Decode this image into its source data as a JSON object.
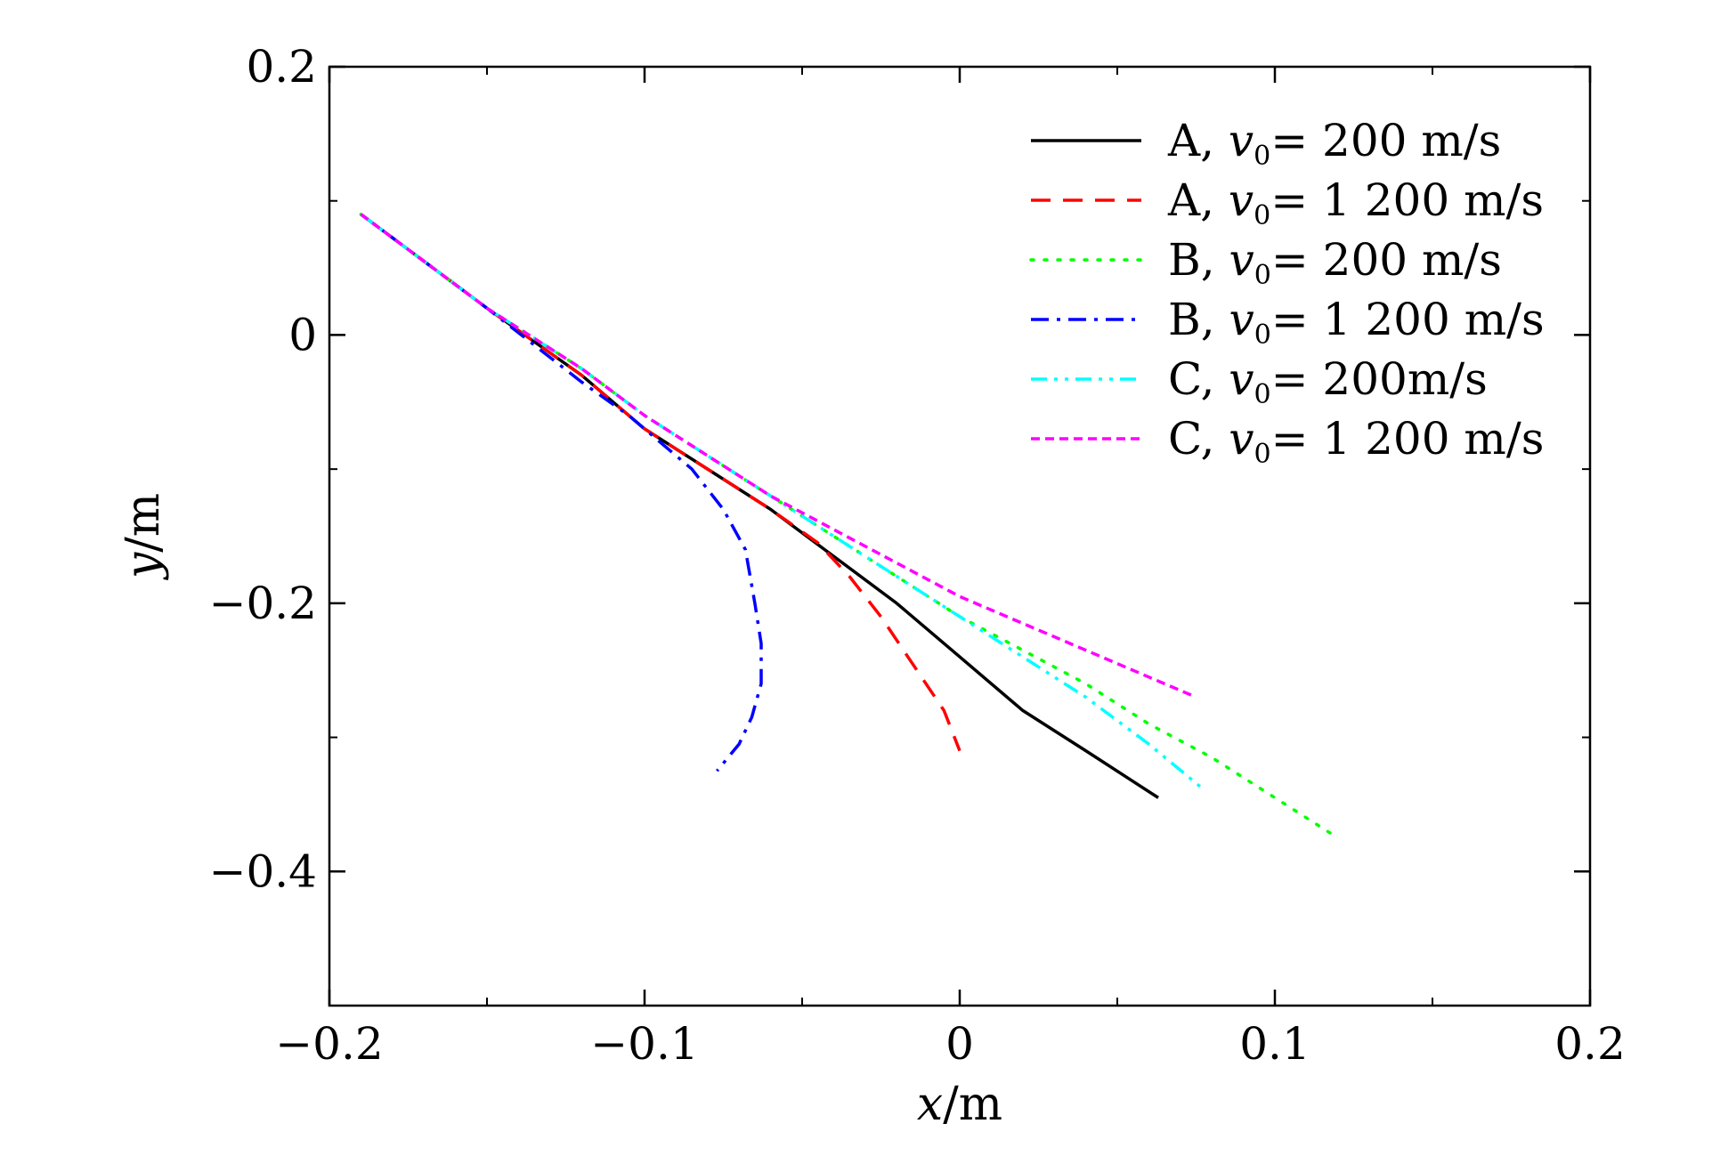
{
  "chart_data": {
    "type": "line",
    "xlabel": {
      "var": "x",
      "unit": "/m"
    },
    "ylabel": {
      "var": "y",
      "unit": "/m"
    },
    "xlim": [
      -0.2,
      0.2
    ],
    "ylim": [
      -0.5,
      0.2
    ],
    "xticks": [
      -0.2,
      -0.1,
      0,
      0.1,
      0.2
    ],
    "xtick_labels": [
      "−0.2",
      "−0.1",
      "0",
      "0.1",
      "0.2"
    ],
    "yticks": [
      0.2,
      0,
      -0.2,
      -0.4
    ],
    "ytick_labels": [
      "0.2",
      "0",
      "−0.2",
      "−0.4"
    ],
    "x_minor_ticks": [
      -0.15,
      -0.05,
      0.05,
      0.15
    ],
    "y_minor_ticks": [
      0.1,
      -0.1,
      -0.3
    ],
    "grid": false,
    "legend_position": "top-right",
    "series": [
      {
        "name": "A, v0= 200 m/s",
        "legend": {
          "prefix": "A, ",
          "var": "v",
          "sub": "0",
          "suffix": "= 200 m/s"
        },
        "color": "#000000",
        "dash": "solid",
        "x": [
          -0.19,
          -0.15,
          -0.12,
          -0.1,
          -0.08,
          -0.06,
          -0.04,
          -0.02,
          0,
          0.02,
          0.04,
          0.063
        ],
        "y": [
          0.09,
          0.02,
          -0.03,
          -0.07,
          -0.1,
          -0.13,
          -0.165,
          -0.2,
          -0.24,
          -0.28,
          -0.31,
          -0.345
        ]
      },
      {
        "name": "A, v0= 1 200 m/s",
        "legend": {
          "prefix": "A, ",
          "var": "v",
          "sub": "0",
          "suffix": "= 1 200 m/s"
        },
        "color": "#ff0000",
        "dash": "long-dash",
        "x": [
          -0.19,
          -0.15,
          -0.12,
          -0.1,
          -0.08,
          -0.06,
          -0.045,
          -0.035,
          -0.025,
          -0.015,
          -0.005,
          0
        ],
        "y": [
          0.09,
          0.02,
          -0.03,
          -0.07,
          -0.1,
          -0.13,
          -0.155,
          -0.18,
          -0.21,
          -0.245,
          -0.28,
          -0.31
        ]
      },
      {
        "name": "B, v0= 200 m/s",
        "legend": {
          "prefix": "B, ",
          "var": "v",
          "sub": "0",
          "suffix": "= 200 m/s"
        },
        "color": "#00ff00",
        "dash": "dotted",
        "x": [
          -0.19,
          -0.15,
          -0.12,
          -0.1,
          -0.08,
          -0.06,
          -0.04,
          -0.02,
          0,
          0.02,
          0.04,
          0.06,
          0.08,
          0.1,
          0.12
        ],
        "y": [
          0.09,
          0.02,
          -0.025,
          -0.06,
          -0.09,
          -0.12,
          -0.15,
          -0.18,
          -0.21,
          -0.235,
          -0.26,
          -0.29,
          -0.315,
          -0.345,
          -0.375
        ]
      },
      {
        "name": "B, v0= 1 200 m/s",
        "legend": {
          "prefix": "B, ",
          "var": "v",
          "sub": "0",
          "suffix": "= 1 200 m/s"
        },
        "color": "#0000ff",
        "dash": "dash-dot",
        "x": [
          -0.19,
          -0.15,
          -0.12,
          -0.105,
          -0.095,
          -0.085,
          -0.075,
          -0.068,
          -0.065,
          -0.063,
          -0.063,
          -0.066,
          -0.07,
          -0.077
        ],
        "y": [
          0.09,
          0.02,
          -0.035,
          -0.06,
          -0.08,
          -0.1,
          -0.13,
          -0.16,
          -0.2,
          -0.23,
          -0.26,
          -0.285,
          -0.305,
          -0.325
        ]
      },
      {
        "name": "C, v0= 200m/s",
        "legend": {
          "prefix": "C, ",
          "var": "v",
          "sub": "0",
          "suffix": "= 200m/s"
        },
        "color": "#00ffff",
        "dash": "dash-dot-dot",
        "x": [
          -0.19,
          -0.15,
          -0.12,
          -0.1,
          -0.08,
          -0.06,
          -0.04,
          -0.02,
          0,
          0.02,
          0.04,
          0.06,
          0.078
        ],
        "y": [
          0.09,
          0.02,
          -0.025,
          -0.06,
          -0.09,
          -0.12,
          -0.15,
          -0.18,
          -0.21,
          -0.24,
          -0.27,
          -0.305,
          -0.34
        ]
      },
      {
        "name": "C, v0= 1 200 m/s",
        "legend": {
          "prefix": "C, ",
          "var": "v",
          "sub": "0",
          "suffix": "= 1 200 m/s"
        },
        "color": "#ff00ff",
        "dash": "short-dash",
        "x": [
          -0.19,
          -0.15,
          -0.12,
          -0.1,
          -0.08,
          -0.06,
          -0.04,
          -0.02,
          0,
          0.02,
          0.04,
          0.06,
          0.075
        ],
        "y": [
          0.09,
          0.02,
          -0.025,
          -0.06,
          -0.09,
          -0.12,
          -0.145,
          -0.17,
          -0.195,
          -0.215,
          -0.235,
          -0.255,
          -0.27
        ]
      }
    ]
  }
}
